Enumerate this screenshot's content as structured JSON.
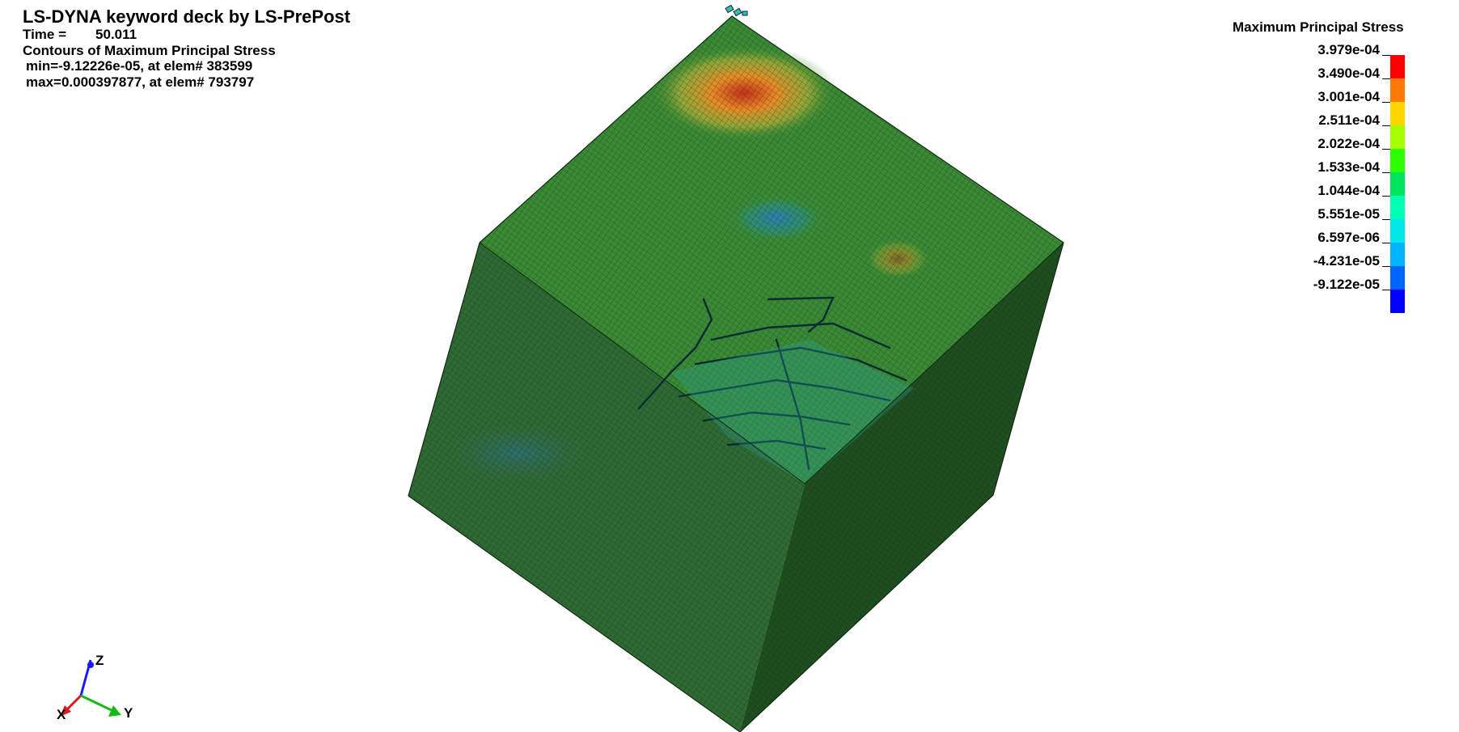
{
  "header": {
    "title": "LS-DYNA keyword deck by LS-PrePost",
    "time_label": "Time =",
    "time_value": "50.011",
    "contour_label": "Contours of Maximum Principal Stress",
    "min_text": "min=-9.12226e-05, at elem# 383599",
    "max_text": "max=0.000397877, at elem# 793797"
  },
  "legend": {
    "title": "Maximum Principal Stress",
    "levels": [
      "3.979e-04",
      "3.490e-04",
      "3.001e-04",
      "2.511e-04",
      "2.022e-04",
      "1.533e-04",
      "1.044e-04",
      "5.551e-05",
      "6.597e-06",
      "-4.231e-05",
      "-9.122e-05"
    ],
    "colors": [
      "#ff0000",
      "#ff7a00",
      "#ffd700",
      "#a6ff00",
      "#2bff00",
      "#00e65c",
      "#00ffb0",
      "#00e8e8",
      "#00b4ff",
      "#0064ff",
      "#0000ff"
    ]
  },
  "model": {
    "top_face_color": "#3a8a35",
    "left_face_color": "#2f6a33",
    "right_face_color": "#1f4e20",
    "hot_spot_color": "#e0541a",
    "crack_color": "#2aa8a8"
  },
  "triad": {
    "z_label": "Z",
    "x_label": "X",
    "y_label": "Y",
    "z_color": "#1a1aff",
    "x_color": "#e01818",
    "y_color": "#18b818"
  }
}
